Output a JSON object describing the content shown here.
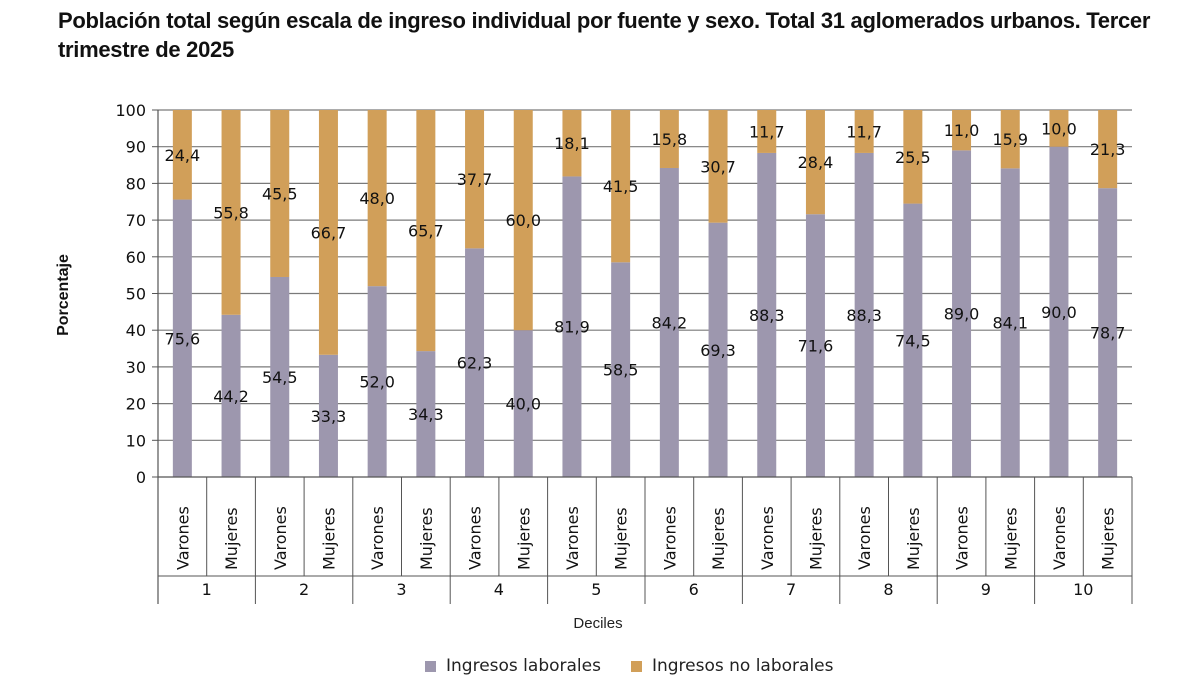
{
  "title": "Población total según escala de ingreso individual por fuente y sexo. Total 31 aglomerados urbanos. Tercer trimestre de 2025",
  "chart_data": {
    "type": "bar",
    "stacked": true,
    "title": "Población total según escala de ingreso individual por fuente y sexo. Total 31 aglomerados urbanos. Tercer trimestre de 2025",
    "xlabel": "Deciles",
    "ylabel": "Porcentaje",
    "ylim": [
      0,
      100
    ],
    "yticks": [
      0,
      10,
      20,
      30,
      40,
      50,
      60,
      70,
      80,
      90,
      100
    ],
    "grid": true,
    "legend_position": "bottom",
    "groups": [
      "1",
      "2",
      "3",
      "4",
      "5",
      "6",
      "7",
      "8",
      "9",
      "10"
    ],
    "sexes": [
      "Varones",
      "Mujeres"
    ],
    "categories": [
      "Varones",
      "Mujeres",
      "Varones",
      "Mujeres",
      "Varones",
      "Mujeres",
      "Varones",
      "Mujeres",
      "Varones",
      "Mujeres",
      "Varones",
      "Mujeres",
      "Varones",
      "Mujeres",
      "Varones",
      "Mujeres",
      "Varones",
      "Mujeres",
      "Varones",
      "Mujeres"
    ],
    "series": [
      {
        "name": "Ingresos laborales",
        "color": "#9d97ae",
        "labels": [
          "75,6",
          "44,2",
          "54,5",
          "33,3",
          "52,0",
          "34,3",
          "62,3",
          "40,0",
          "81,9",
          "58,5",
          "84,2",
          "69,3",
          "88,3",
          "71,6",
          "88,3",
          "74,5",
          "89,0",
          "84,1",
          "90,0",
          "78,7"
        ],
        "values": [
          75.6,
          44.2,
          54.5,
          33.3,
          52.0,
          34.3,
          62.3,
          40.0,
          81.9,
          58.5,
          84.2,
          69.3,
          88.3,
          71.6,
          88.3,
          74.5,
          89.0,
          84.1,
          90.0,
          78.7
        ]
      },
      {
        "name": "Ingresos no laborales",
        "color": "#d19f59",
        "labels": [
          "24,4",
          "55,8",
          "45,5",
          "66,7",
          "48,0",
          "65,7",
          "37,7",
          "60,0",
          "18,1",
          "41,5",
          "15,8",
          "30,7",
          "11,7",
          "28,4",
          "11,7",
          "25,5",
          "11,0",
          "15,9",
          "10,0",
          "21,3"
        ],
        "values": [
          24.4,
          55.8,
          45.5,
          66.7,
          48.0,
          65.7,
          37.7,
          60.0,
          18.1,
          41.5,
          15.8,
          30.7,
          11.7,
          28.4,
          11.7,
          25.5,
          11.0,
          15.9,
          10.0,
          21.3
        ]
      }
    ]
  }
}
